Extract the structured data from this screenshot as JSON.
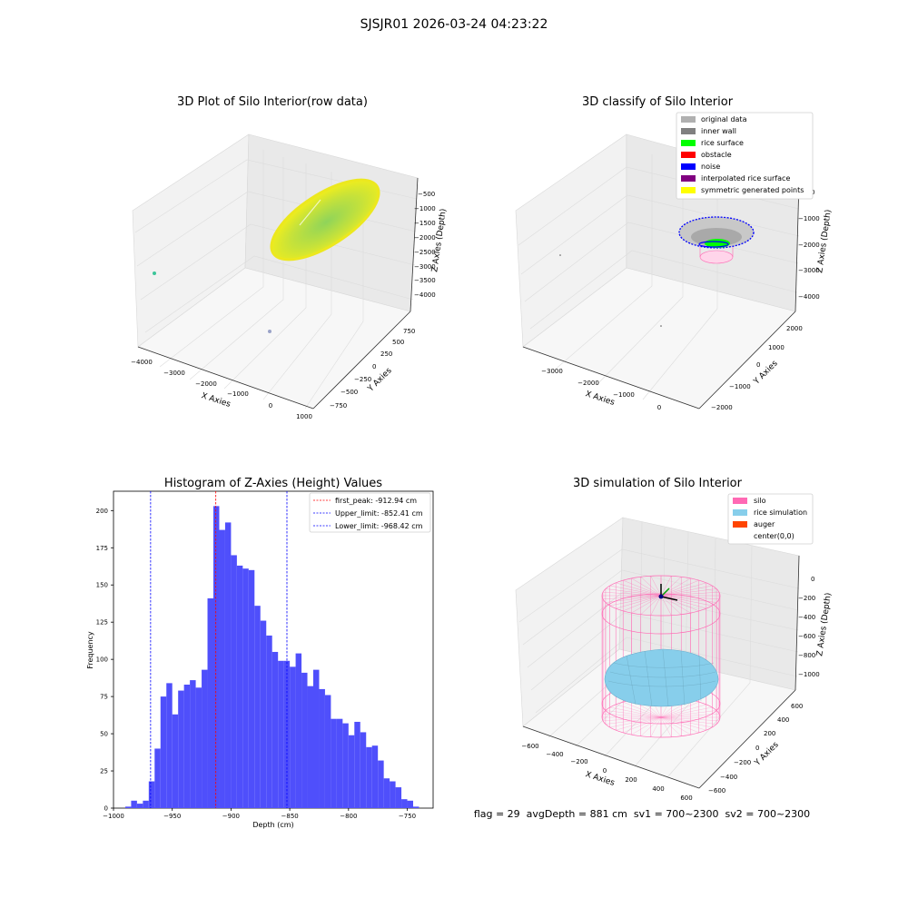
{
  "figure": {
    "suptitle": "SJSJR01 2026-03-24 04:23:22",
    "status_line": "flag = 29  avgDepth = 881 cm  sv1 = 700~2300  sv2 = 700~2300"
  },
  "colors": {
    "hist_bar": "#4f4ffb",
    "first_peak": "#ff0000",
    "limits": "#0000ff",
    "silo": "#ff69b4",
    "rice": "#87ceeb",
    "auger": "#ff4500",
    "original": "#b0b0b0",
    "inner_wall": "#808080",
    "rice_surface": "#00ff00",
    "obstacle": "#ff0000",
    "noise": "#0000ff",
    "interpolated": "#800080",
    "symmetric": "#ffff00"
  },
  "chart_data": [
    {
      "type": "scatter3d",
      "title": "3D Plot of Silo Interior(row data)",
      "xlabel": "X Axies",
      "ylabel": "Y Axies",
      "zlabel": "Z Axies (Depth)",
      "x_ticks": [
        "−4000",
        "−3000",
        "−2000",
        "−1000",
        "0",
        "1000"
      ],
      "y_ticks": [
        "−750",
        "−500",
        "−250",
        "0",
        "250",
        "500",
        "750"
      ],
      "z_ticks": [
        "−4000",
        "−3500",
        "−3000",
        "−2500",
        "−2000",
        "−1500",
        "−1000",
        "−500"
      ],
      "xlim": [
        -4000,
        1000
      ],
      "ylim": [
        -750,
        750
      ],
      "zlim": [
        -4000,
        -500
      ]
    },
    {
      "type": "scatter3d",
      "title": "3D classify of Silo Interior",
      "xlabel": "X Axies",
      "ylabel": "Y Axies",
      "zlabel": "Z Axies (Depth)",
      "x_ticks": [
        "−3000",
        "−2000",
        "−1000",
        "0"
      ],
      "y_ticks": [
        "−2000",
        "−1000",
        "0",
        "1000",
        "2000"
      ],
      "z_ticks": [
        "−4000",
        "−3000",
        "−2000",
        "−1000",
        "0"
      ],
      "legend": [
        "original data",
        "inner wall",
        "rice surface",
        "obstacle",
        "noise",
        "interpolated rice surface",
        "symmetric generated points"
      ],
      "legend_placement": "top-right"
    },
    {
      "type": "bar",
      "title": "Histogram of Z-Axies (Height) Values",
      "xlabel": "Depth (cm)",
      "ylabel": "Frequency",
      "bin_start": -990,
      "bin_width": 5,
      "values": [
        1,
        5,
        3,
        5,
        18,
        40,
        75,
        84,
        63,
        79,
        83,
        86,
        81,
        93,
        141,
        203,
        187,
        192,
        170,
        163,
        161,
        160,
        136,
        126,
        116,
        105,
        99,
        99,
        95,
        104,
        91,
        82,
        93,
        80,
        76,
        60,
        60,
        57,
        49,
        58,
        51,
        41,
        42,
        32,
        20,
        18,
        14,
        6,
        5,
        1
      ],
      "xlim": [
        -1000,
        -728
      ],
      "ylim": [
        0,
        213
      ],
      "x_ticks": [
        -1000,
        -950,
        -900,
        -850,
        -800,
        -750
      ],
      "y_ticks": [
        0,
        25,
        50,
        75,
        100,
        125,
        150,
        175,
        200
      ],
      "x_tick_labels": [
        "−1000",
        "−950",
        "−900",
        "−850",
        "−800",
        "−750"
      ],
      "vlines": [
        {
          "label": "first_peak: -912.94 cm",
          "x": -912.94,
          "color": "#ff0000"
        },
        {
          "label": "Upper_limit: -852.41 cm",
          "x": -852.41,
          "color": "#0000ff"
        },
        {
          "label": "Lower_limit: -968.42 cm",
          "x": -968.42,
          "color": "#0000ff"
        }
      ],
      "legend_placement": "top-right"
    },
    {
      "type": "surface3d",
      "title": "3D simulation of Silo Interior",
      "xlabel": "X Axies",
      "ylabel": "Y Axies",
      "zlabel": "Z Axies (Depth)",
      "x_ticks": [
        "−600",
        "−400",
        "−200",
        "0",
        "200",
        "400",
        "600"
      ],
      "y_ticks": [
        "−600",
        "−400",
        "−200",
        "0",
        "200",
        "400",
        "600"
      ],
      "z_ticks": [
        "−1000",
        "−800",
        "−600",
        "−400",
        "−200",
        "0"
      ],
      "legend": [
        "silo",
        "rice simulation",
        "auger",
        "center(0,0)"
      ],
      "legend_placement": "top-right"
    }
  ]
}
